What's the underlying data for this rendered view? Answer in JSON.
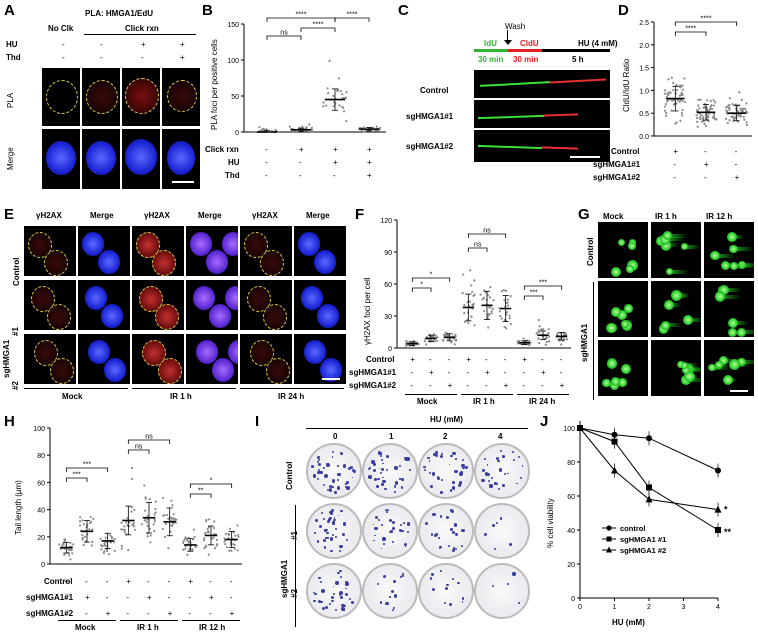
{
  "panel_letters": {
    "A": "A",
    "B": "B",
    "C": "C",
    "D": "D",
    "E": "E",
    "F": "F",
    "G": "G",
    "H": "H",
    "I": "I",
    "J": "J"
  },
  "panelA": {
    "title": "PLA: HMGA1/EdU",
    "col_no_click": "No Clk",
    "col_click": "Click rxn",
    "row_hu": "HU",
    "row_thd": "Thd",
    "hu_signs": [
      "-",
      "-",
      "+",
      "+"
    ],
    "thd_signs": [
      "-",
      "-",
      "-",
      "+"
    ],
    "row_pla": "PLA",
    "row_merge": "Merge"
  },
  "panelB": {
    "ylabel": "PLA foci per positive cells",
    "row_labels": [
      "Click rxn",
      "HU",
      "Thd"
    ],
    "signs": [
      [
        "-",
        "+",
        "+",
        "+"
      ],
      [
        "-",
        "-",
        "+",
        "+"
      ],
      [
        "-",
        "-",
        "-",
        "+"
      ]
    ],
    "sig": [
      "ns",
      "****",
      "****",
      "****"
    ],
    "chart_data": {
      "type": "scatter",
      "ylabel": "PLA foci per positive cells",
      "ylim": [
        0,
        150
      ],
      "yticks": [
        0,
        50,
        100,
        150
      ],
      "groups": [
        "No Clk",
        "Click rxn",
        "Click rxn+HU",
        "Click rxn+HU+Thd"
      ],
      "means": [
        0,
        3,
        45,
        4
      ]
    }
  },
  "panelC": {
    "wash": "Wash",
    "idu": "IdU",
    "cldu": "CldU",
    "hu": "HU (4 mM)",
    "t1": "30 min",
    "t2": "30 min",
    "t3": "5 h",
    "rows": [
      "Control",
      "sgHMGA1#1",
      "sgHMGA1#2"
    ]
  },
  "panelD": {
    "ylabel": "CldU/IdU Ratio",
    "row_labels": [
      "Control",
      "sgHMGA1#1",
      "sgHMGA1#2"
    ],
    "signs": [
      [
        "+",
        "-",
        "-"
      ],
      [
        "-",
        "+",
        "-"
      ],
      [
        "-",
        "-",
        "+"
      ]
    ],
    "sig": [
      "****",
      "****"
    ],
    "chart_data": {
      "type": "scatter",
      "ylabel": "CldU/IdU Ratio",
      "ylim": [
        0,
        2.5
      ],
      "yticks": [
        0.0,
        0.5,
        1.0,
        1.5,
        2.0,
        2.5
      ],
      "groups": [
        "Control",
        "sgHMGA1#1",
        "sgHMGA1#2"
      ],
      "means": [
        0.82,
        0.52,
        0.5
      ]
    }
  },
  "panelE": {
    "cols": [
      "γH2AX",
      "Merge",
      "γH2AX",
      "Merge",
      "γH2AX",
      "Merge"
    ],
    "rows": [
      "Control",
      "#1",
      "#2"
    ],
    "sg": "sgHMGA1",
    "groups": [
      "Mock",
      "IR 1 h",
      "IR 24 h"
    ]
  },
  "panelF": {
    "ylabel": "γH2AX foci per cell",
    "row_labels": [
      "Control",
      "sgHMGA1#1",
      "sgHMGA1#2"
    ],
    "signs": [
      [
        "+",
        "-",
        "-",
        "+",
        "-",
        "-",
        "+",
        "-",
        "-"
      ],
      [
        "-",
        "+",
        "-",
        "-",
        "+",
        "-",
        "-",
        "+",
        "-"
      ],
      [
        "-",
        "-",
        "+",
        "-",
        "-",
        "+",
        "-",
        "-",
        "+"
      ]
    ],
    "groups": [
      "Mock",
      "IR 1 h",
      "IR 24 h"
    ],
    "sig": [
      "*",
      "*",
      "ns",
      "ns",
      "***",
      "***"
    ],
    "chart_data": {
      "type": "scatter",
      "ylabel": "γH2AX foci per cell",
      "ylim": [
        0,
        120
      ],
      "yticks": [
        0,
        30,
        60,
        90,
        120
      ],
      "groups": [
        "Mock Ctrl",
        "Mock #1",
        "Mock #2",
        "IR1h Ctrl",
        "IR1h #1",
        "IR1h #2",
        "IR24h Ctrl",
        "IR24h #1",
        "IR24h #2"
      ],
      "means": [
        4,
        9,
        10,
        38,
        40,
        37,
        5,
        12,
        11
      ]
    }
  },
  "panelG": {
    "cols": [
      "Mock",
      "IR 1 h",
      "IR 12 h"
    ],
    "rows": [
      "Control",
      "#1",
      "#2"
    ],
    "sg": "sgHMGA1"
  },
  "panelH": {
    "ylabel": "Tail length (μm)",
    "row_labels": [
      "Control",
      "sgHMGA1#1",
      "sgHMGA1#2"
    ],
    "signs": [
      [
        "+",
        "-",
        "-",
        "+",
        "-",
        "-",
        "+",
        "-",
        "-"
      ],
      [
        "-",
        "+",
        "-",
        "-",
        "+",
        "-",
        "-",
        "+",
        "-"
      ],
      [
        "-",
        "-",
        "+",
        "-",
        "-",
        "+",
        "-",
        "-",
        "+"
      ]
    ],
    "groups": [
      "Mock",
      "IR 1 h",
      "IR 12 h"
    ],
    "sig": [
      "***",
      "***",
      "ns",
      "ns",
      "**",
      "*"
    ],
    "chart_data": {
      "type": "scatter",
      "ylabel": "Tail length (μm)",
      "ylim": [
        0,
        100
      ],
      "yticks": [
        0,
        20,
        40,
        60,
        80,
        100
      ],
      "groups": [
        "Mock Ctrl",
        "Mock #1",
        "Mock #2",
        "IR1h Ctrl",
        "IR1h #1",
        "IR1h #2",
        "IR12h Ctrl",
        "IR12h #1",
        "IR12h #2"
      ],
      "means": [
        12,
        24,
        17,
        32,
        34,
        31,
        14,
        21,
        18
      ]
    }
  },
  "panelI": {
    "title": "HU (mM)",
    "cols": [
      "0",
      "1",
      "2",
      "4"
    ],
    "rows": [
      "Control",
      "#1",
      "#2"
    ],
    "sg": "sgHMGA1"
  },
  "panelJ": {
    "ylabel": "% cell viability",
    "xlabel": "HU (mM)",
    "chart_data": {
      "type": "line",
      "xlabel": "HU (mM)",
      "ylabel": "% cell viability",
      "xlim": [
        0,
        4
      ],
      "ylim": [
        0,
        100
      ],
      "xticks": [
        0,
        1,
        2,
        3,
        4
      ],
      "yticks": [
        0,
        20,
        40,
        60,
        80,
        100
      ],
      "series": [
        {
          "name": "control",
          "marker": "circle",
          "x": [
            0,
            1,
            2,
            4
          ],
          "y": [
            100,
            96,
            94,
            75
          ]
        },
        {
          "name": "sgHMGA1 #1",
          "marker": "square",
          "x": [
            0,
            1,
            2,
            4
          ],
          "y": [
            100,
            92,
            65,
            40
          ]
        },
        {
          "name": "sgHMGA1 #2",
          "marker": "triangle",
          "x": [
            0,
            1,
            2,
            4
          ],
          "y": [
            100,
            75,
            58,
            52
          ]
        }
      ],
      "annotations": [
        "*",
        "**"
      ]
    }
  }
}
